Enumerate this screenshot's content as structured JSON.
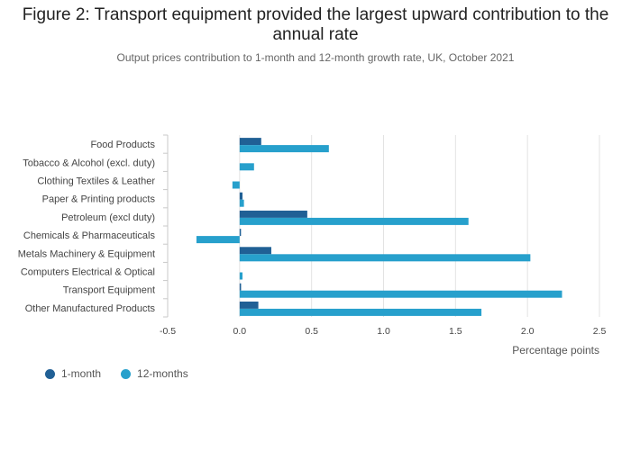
{
  "title": "Figure 2: Transport equipment provided the largest upward contribution to the annual rate",
  "subtitle": "Output prices contribution to 1-month and 12-month growth rate, UK, October 2021",
  "chart_data": {
    "type": "bar",
    "orientation": "horizontal",
    "categories": [
      "Food Products",
      "Tobacco & Alcohol (excl. duty)",
      "Clothing Textiles & Leather",
      "Paper & Printing products",
      "Petroleum (excl duty)",
      "Chemicals & Pharmaceuticals",
      "Metals Machinery & Equipment",
      "Computers Electrical & Optical",
      "Transport Equipment",
      "Other Manufactured Products"
    ],
    "series": [
      {
        "name": "1-month",
        "color": "#206095",
        "values": [
          0.15,
          0.0,
          0.0,
          0.02,
          0.47,
          0.005,
          0.22,
          0.0,
          0.01,
          0.13
        ]
      },
      {
        "name": "12-months",
        "color": "#27a0cc",
        "values": [
          0.62,
          0.1,
          -0.05,
          0.03,
          1.59,
          -0.3,
          2.02,
          0.02,
          2.24,
          1.68
        ]
      }
    ],
    "xlabel": "Percentage points",
    "xlim": [
      -0.5,
      2.5
    ],
    "xticks": [
      "-0.5",
      "0.0",
      "0.5",
      "1.0",
      "1.5",
      "2.0",
      "2.5"
    ],
    "grid": true,
    "legend_position": "bottom-left"
  }
}
